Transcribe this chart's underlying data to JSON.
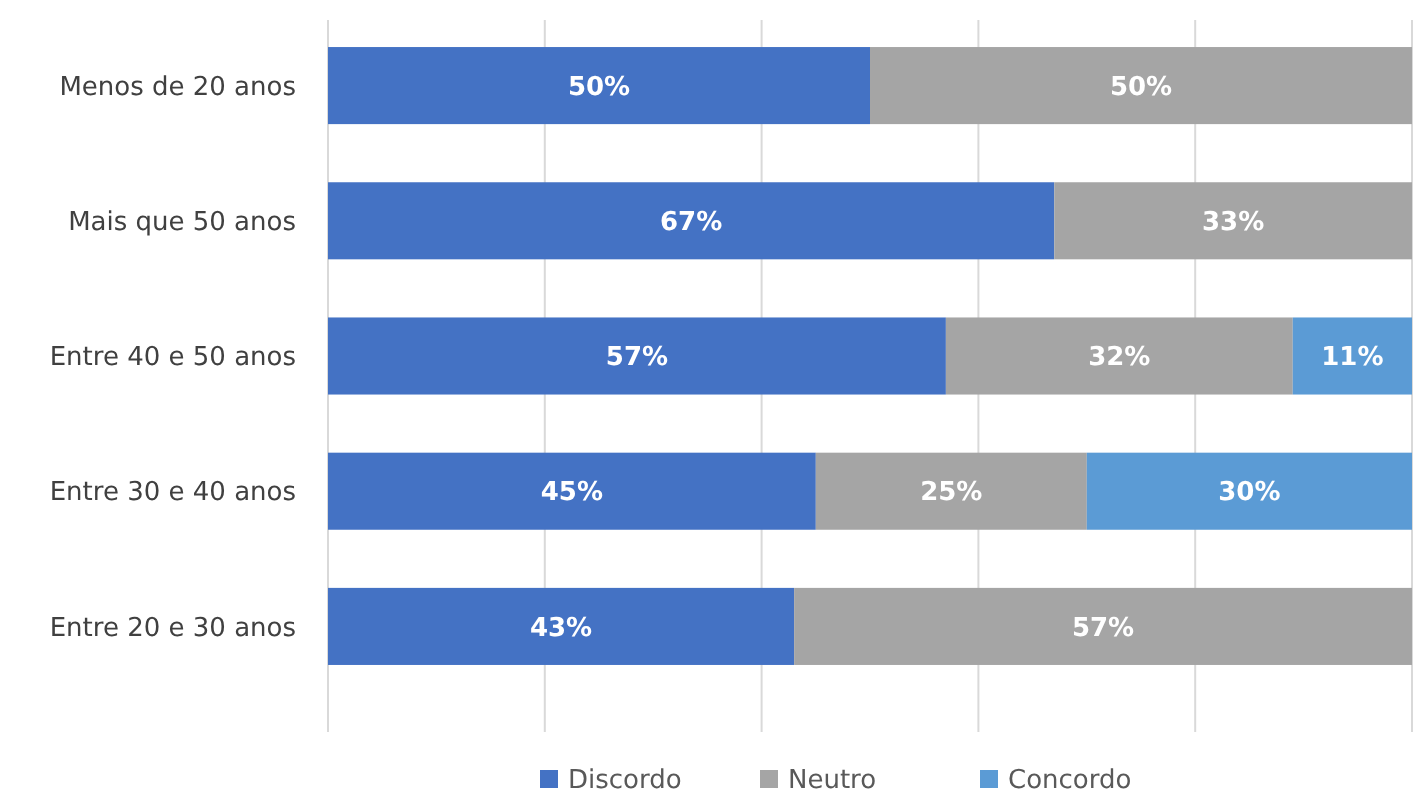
{
  "chart_data": {
    "type": "bar",
    "orientation": "horizontal",
    "stacked": true,
    "categories": [
      "Menos de 20 anos",
      "Mais que 50 anos",
      "Entre 40 e 50 anos",
      "Entre 30 e 40 anos",
      "Entre 20 e 30 anos"
    ],
    "series": [
      {
        "name": "Discordo",
        "color": "#4472c4",
        "values": [
          50,
          67,
          57,
          45,
          43
        ],
        "value_labels": [
          "50%",
          "67%",
          "57%",
          "45%",
          "43%"
        ]
      },
      {
        "name": "Neutro",
        "color": "#a5a5a5",
        "values": [
          50,
          33,
          32,
          25,
          57
        ],
        "value_labels": [
          "50%",
          "33%",
          "32%",
          "25%",
          "57%"
        ]
      },
      {
        "name": "Concordo",
        "color": "#5b9bd5",
        "values": [
          null,
          null,
          11,
          30,
          null
        ],
        "value_labels": [
          null,
          null,
          "11%",
          "30%",
          null
        ]
      }
    ],
    "tick_labels": "y",
    "grid": "x",
    "legend": "bottom"
  }
}
